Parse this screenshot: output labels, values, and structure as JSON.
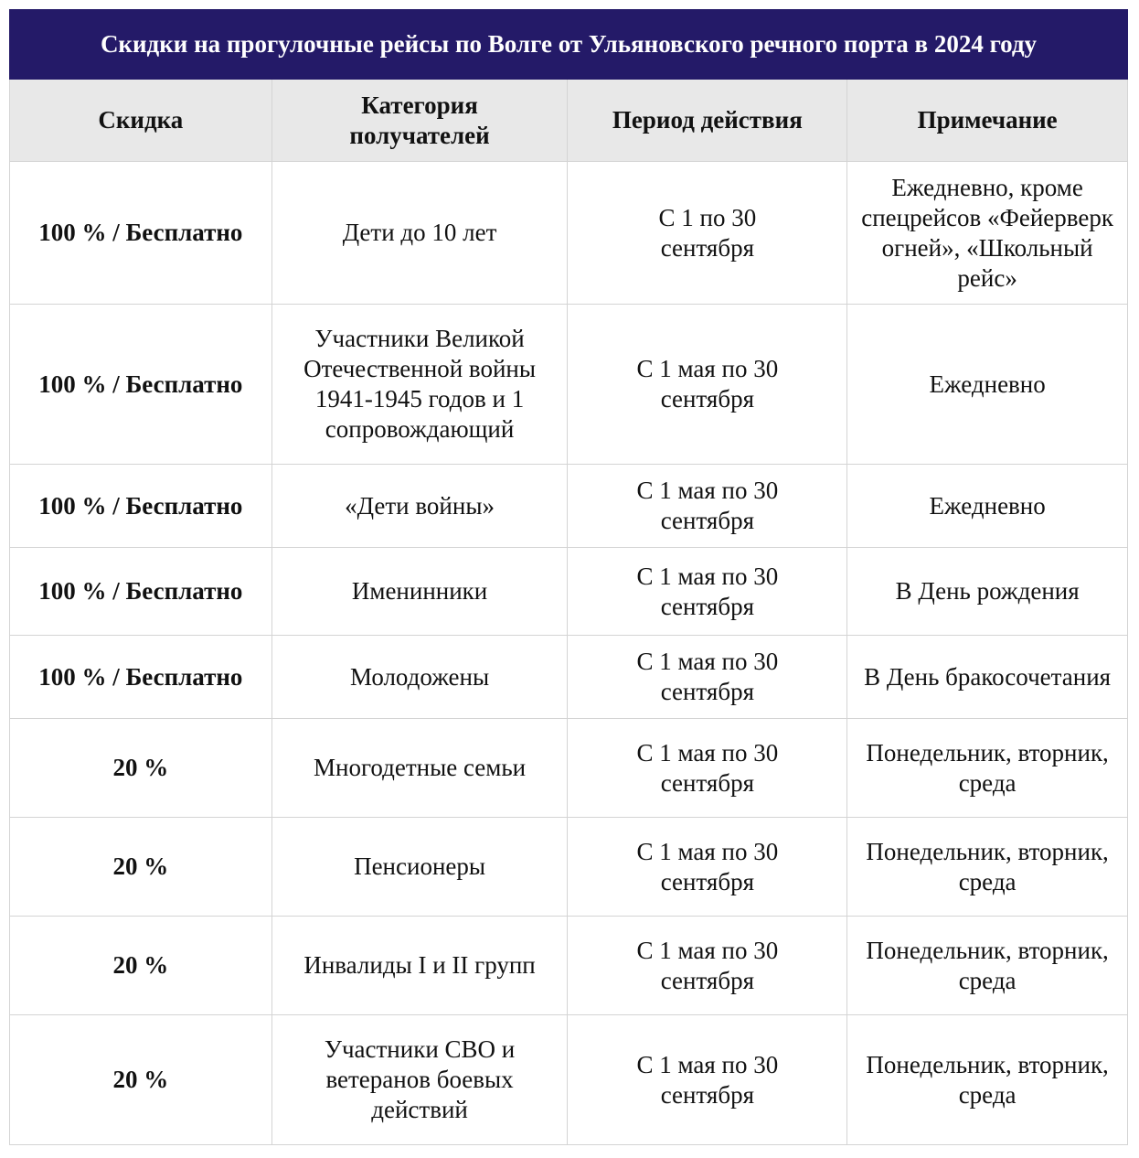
{
  "title": "Скидки на прогулочные рейсы по Волге от Ульяновского речного порта в 2024 году",
  "columns": [
    "Скидка",
    "Категория получателей",
    "Период действия",
    "Примечание"
  ],
  "rows": [
    [
      "100 % / Бесплатно",
      "Дети до 10 лет",
      "С 1 по 30 сентября",
      "Ежедневно, кроме спецрейсов «Фейерверк огней», «Школьный рейс»"
    ],
    [
      "100 % / Бесплатно",
      "Участники Великой Отечественной войны 1941-1945 годов и 1 сопровождающий",
      "С 1 мая по 30 сентября",
      "Ежедневно"
    ],
    [
      "100 % / Бесплатно",
      "«Дети войны»",
      "С 1 мая по 30 сентября",
      "Ежедневно"
    ],
    [
      "100 % / Бесплатно",
      "Именинники",
      "С 1 мая по 30 сентября",
      "В День рождения"
    ],
    [
      "100 % / Бесплатно",
      "Молодожены",
      "С 1 мая по 30 сентября",
      "В День бракосочетания"
    ],
    [
      "20 %",
      "Многодетные семьи",
      "С 1 мая по 30 сентября",
      "Понедельник, вторник, среда"
    ],
    [
      "20 %",
      "Пенсионеры",
      "С 1 мая по 30 сентября",
      "Понедельник, вторник, среда"
    ],
    [
      "20 %",
      "Инвалиды I и II групп",
      "С 1 мая по 30 сентября",
      "Понедельник, вторник, среда"
    ],
    [
      "20 %",
      "Участники СВО и ветеранов боевых действий",
      "С 1 мая по 30 сентября",
      "Понедельник, вторник, среда"
    ]
  ]
}
